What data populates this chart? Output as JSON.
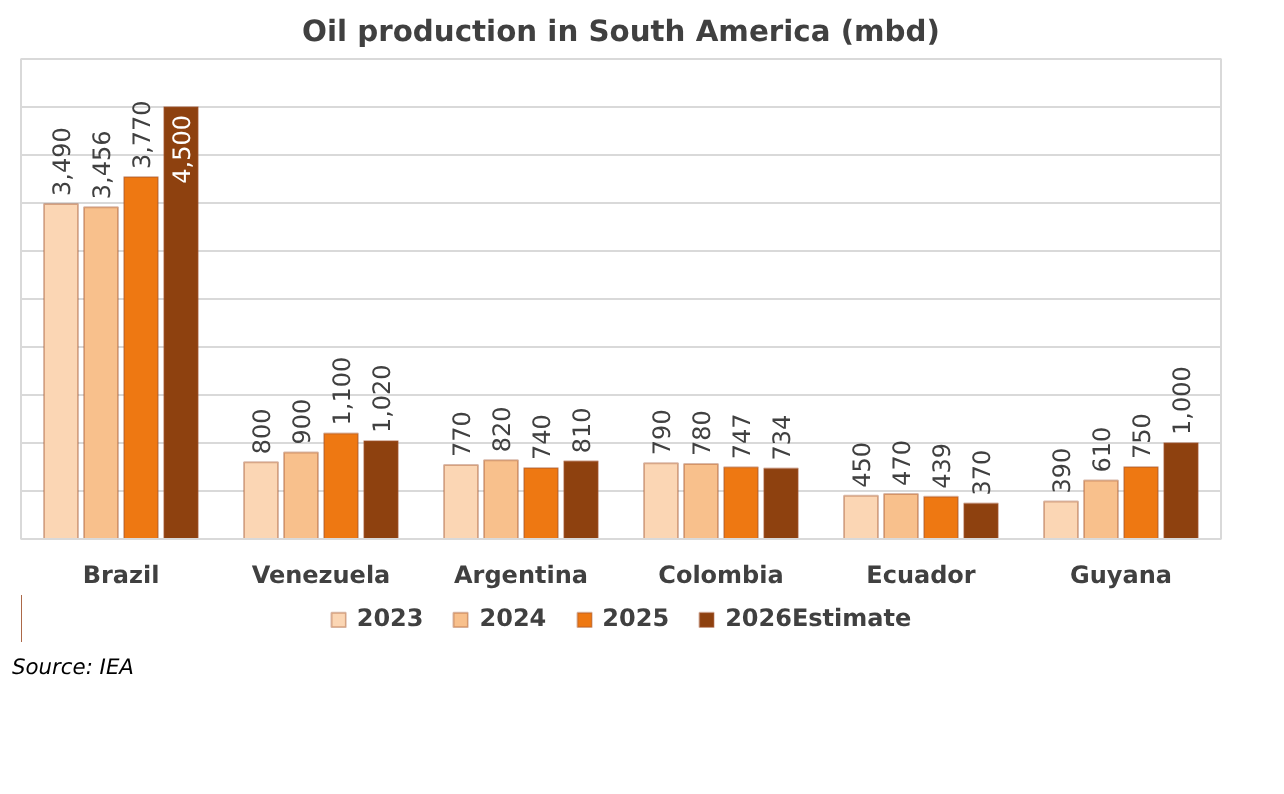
{
  "chart_data": {
    "type": "bar",
    "title": "Oil production in South America (mbd)",
    "categories": [
      "Brazil",
      "Venezuela",
      "Argentina",
      "Colombia",
      "Ecuador",
      "Guyana"
    ],
    "series": [
      {
        "name": "2023",
        "color": "#fbd6b4",
        "values": [
          3490,
          800,
          770,
          790,
          450,
          390
        ],
        "value_labels": [
          "3,490",
          "800",
          "770",
          "790",
          "450",
          "390"
        ]
      },
      {
        "name": "2024",
        "color": "#f8c08c",
        "values": [
          3456,
          900,
          820,
          780,
          470,
          610
        ],
        "value_labels": [
          "3,456",
          "900",
          "820",
          "780",
          "470",
          "610"
        ]
      },
      {
        "name": "2025",
        "color": "#ee7812",
        "values": [
          3770,
          1100,
          740,
          747,
          439,
          750
        ],
        "value_labels": [
          "3,770",
          "1,100",
          "740",
          "747",
          "439",
          "750"
        ]
      },
      {
        "name": "2026Estimate",
        "color": "#8e410f",
        "values": [
          4500,
          1020,
          810,
          734,
          370,
          1000
        ],
        "value_labels": [
          "4,500",
          "1,020",
          "810",
          "734",
          "370",
          "1,000"
        ]
      }
    ],
    "ylim": [
      0,
      5000
    ],
    "yticks": [
      {
        "value": 0,
        "label": null
      },
      {
        "value": 500,
        "label": null
      },
      {
        "value": 1000,
        "label": null
      },
      {
        "value": 1500,
        "label": null
      },
      {
        "value": 2000,
        "label": null
      },
      {
        "value": 2500,
        "label": null
      },
      {
        "value": 3000,
        "label": null
      },
      {
        "value": 3500,
        "label": null
      },
      {
        "value": 4000,
        "label": null
      },
      {
        "value": 4500,
        "label": null
      },
      {
        "value": 5000,
        "label": null
      }
    ],
    "grid": "y",
    "legend": "bottom",
    "tick_labels": "x",
    "annotations": [
      "Source: IEA"
    ]
  }
}
